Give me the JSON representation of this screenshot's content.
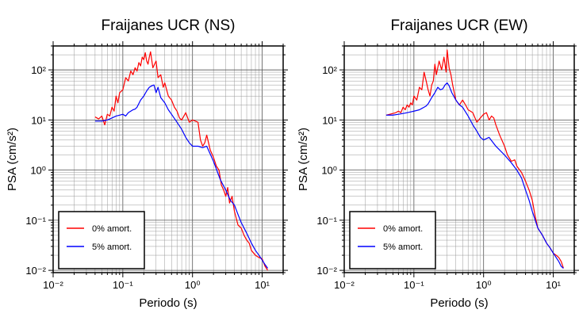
{
  "chart_data": [
    {
      "type": "line",
      "title": "Fraijanes UCR (NS)",
      "xlabel": "Periodo (s)",
      "ylabel": "PSA (cm/s²)",
      "x_scale": "log",
      "y_scale": "log",
      "xlim": [
        0.01,
        20
      ],
      "ylim": [
        0.009,
        300
      ],
      "x_tick_values": [
        0.01,
        0.1,
        1,
        10
      ],
      "x_tick_labels": [
        "10⁻²",
        "10⁻¹",
        "10⁰",
        "10¹"
      ],
      "y_tick_values": [
        0.01,
        0.1,
        1,
        10,
        100
      ],
      "y_tick_labels": [
        "10⁻²",
        "10⁻¹",
        "10⁰",
        "10¹",
        "10²"
      ],
      "grid": true,
      "legend_position": "bottom-left",
      "series": [
        {
          "name": "0% amort.",
          "color": "#ff0000",
          "x": [
            0.04,
            0.045,
            0.05,
            0.055,
            0.06,
            0.065,
            0.07,
            0.075,
            0.08,
            0.085,
            0.09,
            0.1,
            0.11,
            0.12,
            0.13,
            0.14,
            0.15,
            0.16,
            0.17,
            0.18,
            0.19,
            0.2,
            0.21,
            0.22,
            0.23,
            0.24,
            0.25,
            0.27,
            0.3,
            0.32,
            0.35,
            0.38,
            0.4,
            0.45,
            0.5,
            0.55,
            0.6,
            0.65,
            0.7,
            0.8,
            0.9,
            1.0,
            1.1,
            1.2,
            1.3,
            1.4,
            1.5,
            1.6,
            1.8,
            2.0,
            2.2,
            2.4,
            2.6,
            2.8,
            3.0,
            3.2,
            3.4,
            3.7,
            4.0,
            4.5,
            5.0,
            5.5,
            6.0,
            6.5,
            7.0,
            8.0,
            9.0,
            10.0,
            11.0,
            12.0
          ],
          "y": [
            11.5,
            10.5,
            12.0,
            8.0,
            13.0,
            12.0,
            18.0,
            15.0,
            30.0,
            22.0,
            35.0,
            40.0,
            70.0,
            60.0,
            95.0,
            80.0,
            110.0,
            95.0,
            140.0,
            120.0,
            180.0,
            160.0,
            220.0,
            150.0,
            130.0,
            180.0,
            230.0,
            110.0,
            150.0,
            70.0,
            80.0,
            45.0,
            55.0,
            30.0,
            25.0,
            18.0,
            15.0,
            11.0,
            10.0,
            14.0,
            9.0,
            10.0,
            9.5,
            9.0,
            4.0,
            3.0,
            3.5,
            5.0,
            2.5,
            1.8,
            1.2,
            1.0,
            0.5,
            0.4,
            0.3,
            0.45,
            0.22,
            0.3,
            0.15,
            0.08,
            0.07,
            0.05,
            0.04,
            0.035,
            0.025,
            0.02,
            0.018,
            0.017,
            0.012,
            0.01
          ]
        },
        {
          "name": "5% amort.",
          "color": "#0000ff",
          "x": [
            0.04,
            0.05,
            0.06,
            0.07,
            0.08,
            0.09,
            0.1,
            0.11,
            0.12,
            0.13,
            0.14,
            0.15,
            0.16,
            0.18,
            0.2,
            0.22,
            0.24,
            0.26,
            0.28,
            0.3,
            0.32,
            0.35,
            0.4,
            0.45,
            0.5,
            0.6,
            0.7,
            0.8,
            0.9,
            1.0,
            1.2,
            1.4,
            1.6,
            2.0,
            2.5,
            3.0,
            3.5,
            4.0,
            4.5,
            5.0,
            6.0,
            7.0,
            8.0,
            9.0,
            10.0,
            11.0,
            12.0
          ],
          "y": [
            9.5,
            9.5,
            10.0,
            11.0,
            12.0,
            12.5,
            13.0,
            12.0,
            14.0,
            15.0,
            16.0,
            16.5,
            18.0,
            25.0,
            30.0,
            38.0,
            45.0,
            48.0,
            50.0,
            35.0,
            45.0,
            28.0,
            22.0,
            16.0,
            13.0,
            9.0,
            6.5,
            4.5,
            3.5,
            3.0,
            3.0,
            2.8,
            3.0,
            1.5,
            0.65,
            0.4,
            0.25,
            0.2,
            0.13,
            0.09,
            0.055,
            0.035,
            0.025,
            0.02,
            0.016,
            0.013,
            0.011
          ]
        }
      ]
    },
    {
      "type": "line",
      "title": "Fraijanes UCR (EW)",
      "xlabel": "Periodo (s)",
      "ylabel": "PSA (cm/s²)",
      "x_scale": "log",
      "y_scale": "log",
      "xlim": [
        0.01,
        20
      ],
      "ylim": [
        0.009,
        300
      ],
      "x_tick_values": [
        0.01,
        0.1,
        1,
        10
      ],
      "x_tick_labels": [
        "10⁻²",
        "10⁻¹",
        "10⁰",
        "10¹"
      ],
      "y_tick_values": [
        0.01,
        0.1,
        1,
        10,
        100
      ],
      "y_tick_labels": [
        "10⁻²",
        "10⁻¹",
        "10⁰",
        "10¹",
        "10²"
      ],
      "grid": true,
      "legend_position": "bottom-left",
      "series": [
        {
          "name": "0% amort.",
          "color": "#ff0000",
          "x": [
            0.04,
            0.045,
            0.05,
            0.055,
            0.06,
            0.065,
            0.07,
            0.075,
            0.08,
            0.085,
            0.09,
            0.095,
            0.1,
            0.11,
            0.12,
            0.13,
            0.14,
            0.15,
            0.16,
            0.17,
            0.18,
            0.19,
            0.2,
            0.21,
            0.22,
            0.23,
            0.25,
            0.27,
            0.29,
            0.3,
            0.32,
            0.34,
            0.36,
            0.38,
            0.4,
            0.45,
            0.5,
            0.55,
            0.6,
            0.7,
            0.8,
            0.9,
            1.0,
            1.1,
            1.2,
            1.3,
            1.4,
            1.5,
            1.7,
            2.0,
            2.2,
            2.5,
            2.8,
            3.0,
            3.3,
            3.5,
            4.0,
            4.5,
            5.0,
            5.5,
            6.0,
            7.0,
            8.0,
            9.0,
            10.0,
            11.0,
            12.0,
            13.0,
            14.0
          ],
          "y": [
            12.5,
            13.0,
            13.5,
            14.0,
            15.0,
            14.0,
            18.0,
            16.0,
            20.0,
            18.0,
            22.0,
            20.0,
            30.0,
            25.0,
            45.0,
            40.0,
            90.0,
            60.0,
            40.0,
            30.0,
            50.0,
            60.0,
            130.0,
            80.0,
            110.0,
            150.0,
            100.0,
            180.0,
            90.0,
            250.0,
            110.0,
            80.0,
            50.0,
            35.0,
            25.0,
            20.0,
            25.0,
            20.0,
            16.0,
            14.0,
            9.0,
            11.0,
            13.0,
            14.0,
            10.0,
            12.0,
            11.0,
            8.0,
            5.0,
            3.0,
            2.0,
            1.5,
            1.6,
            1.2,
            1.0,
            0.9,
            0.6,
            0.4,
            0.25,
            0.12,
            0.07,
            0.05,
            0.035,
            0.028,
            0.022,
            0.02,
            0.018,
            0.015,
            0.011
          ]
        },
        {
          "name": "5% amort.",
          "color": "#0000ff",
          "x": [
            0.04,
            0.05,
            0.06,
            0.07,
            0.08,
            0.09,
            0.1,
            0.11,
            0.12,
            0.13,
            0.14,
            0.15,
            0.16,
            0.18,
            0.2,
            0.22,
            0.24,
            0.26,
            0.28,
            0.3,
            0.32,
            0.35,
            0.4,
            0.45,
            0.5,
            0.6,
            0.7,
            0.8,
            0.9,
            1.0,
            1.2,
            1.5,
            2.0,
            2.5,
            3.0,
            3.5,
            4.0,
            4.5,
            5.0,
            6.0,
            7.0,
            8.0,
            9.0,
            10.0,
            11.0,
            12.0,
            13.0,
            14.0
          ],
          "y": [
            12.5,
            12.5,
            13.0,
            13.5,
            14.0,
            14.5,
            15.0,
            15.5,
            16.0,
            17.0,
            18.0,
            19.0,
            21.0,
            28.0,
            35.0,
            45.0,
            40.0,
            42.0,
            50.0,
            55.0,
            48.0,
            35.0,
            25.0,
            20.0,
            18.0,
            12.0,
            8.0,
            6.0,
            4.5,
            4.0,
            4.5,
            3.0,
            2.0,
            1.4,
            1.0,
            0.7,
            0.4,
            0.25,
            0.15,
            0.07,
            0.05,
            0.035,
            0.028,
            0.022,
            0.018,
            0.015,
            0.012,
            0.011
          ]
        }
      ]
    }
  ]
}
